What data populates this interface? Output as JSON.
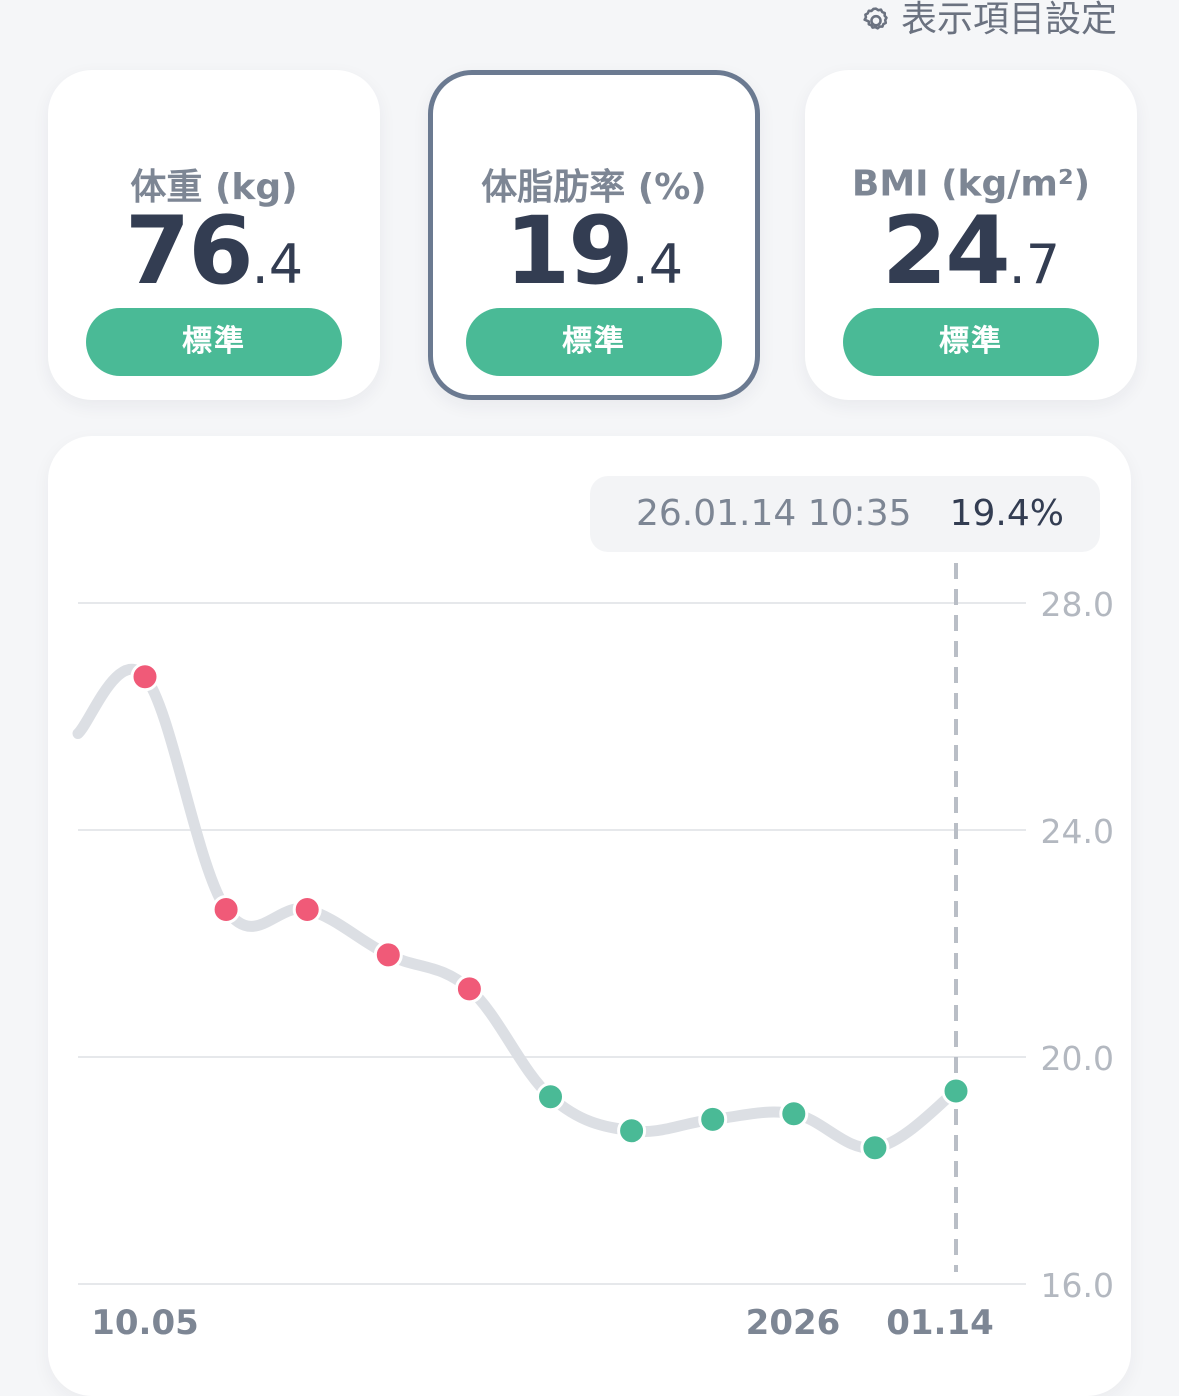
{
  "settings": {
    "label": "表示項目設定",
    "icon": "gear-icon"
  },
  "cards": [
    {
      "title": "体重 (kg)",
      "int": "76",
      "dec": ".4",
      "status": "標準",
      "selected": false
    },
    {
      "title": "体脂肪率 (%)",
      "int": "19",
      "dec": ".4",
      "status": "標準",
      "selected": true
    },
    {
      "title": "BMI (kg/m²)",
      "int": "24",
      "dec": ".7",
      "status": "標準",
      "selected": false
    }
  ],
  "tooltip": {
    "datetime": "26.01.14 10:35",
    "value": "19.4%"
  },
  "colors": {
    "above_standard": "#f05a78",
    "standard": "#4aba96",
    "line": "#dcdfe4",
    "grid": "#e6e8eb"
  },
  "chart_data": {
    "type": "line",
    "ylim": [
      16.0,
      28.0
    ],
    "y_ticks": [
      "28.0",
      "24.0",
      "20.0",
      "16.0"
    ],
    "x_labels": [
      "10.05",
      "2026",
      "01.14"
    ],
    "series": [
      {
        "values": [
          26.7,
          22.6,
          22.6,
          21.8,
          21.2,
          19.3,
          18.7,
          18.9,
          19.0,
          18.4,
          19.4
        ],
        "status": [
          "high",
          "high",
          "high",
          "high",
          "high",
          "standard",
          "standard",
          "standard",
          "standard",
          "standard",
          "standard"
        ]
      }
    ],
    "leading_value": 25.7,
    "selected_index": 10
  }
}
